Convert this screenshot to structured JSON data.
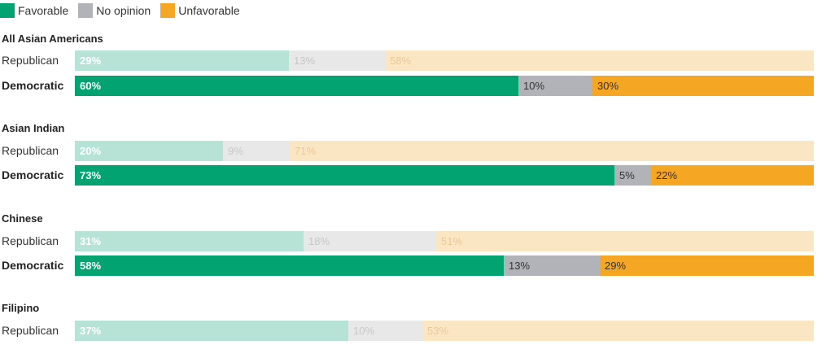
{
  "legend": [
    {
      "label": "Favorable",
      "color": "#02a370"
    },
    {
      "label": "No opinion",
      "color": "#b1b3b8"
    },
    {
      "label": "Unfavorable",
      "color": "#f5a623"
    }
  ],
  "colors": {
    "republican": {
      "favorable": "#b6e3d5",
      "no_opinion": "#e8e8e8",
      "unfavorable": "#fbe6c3",
      "favorable_text": "#ffffff",
      "no_opinion_text": "#c7c7c7",
      "unfavorable_text": "#e8c99a"
    },
    "democratic": {
      "favorable": "#02a370",
      "no_opinion": "#b1b3b8",
      "unfavorable": "#f5a623",
      "favorable_text": "#ffffff",
      "no_opinion_text": "#333333",
      "unfavorable_text": "#333333"
    }
  },
  "chart_data": {
    "type": "bar",
    "orientation": "horizontal",
    "stacked": true,
    "series_names": [
      "Favorable",
      "No opinion",
      "Unfavorable"
    ],
    "groups": [
      {
        "title": "All Asian Americans",
        "rows": [
          {
            "party": "Republican",
            "values": [
              29,
              13,
              58
            ],
            "labels": [
              "29%",
              "13%",
              "58%"
            ]
          },
          {
            "party": "Democratic",
            "values": [
              60,
              10,
              30
            ],
            "labels": [
              "60%",
              "10%",
              "30%"
            ]
          }
        ]
      },
      {
        "title": "Asian Indian",
        "rows": [
          {
            "party": "Republican",
            "values": [
              20,
              9,
              71
            ],
            "labels": [
              "20%",
              "9%",
              "71%"
            ]
          },
          {
            "party": "Democratic",
            "values": [
              73,
              5,
              22
            ],
            "labels": [
              "73%",
              "5%",
              "22%"
            ]
          }
        ]
      },
      {
        "title": "Chinese",
        "rows": [
          {
            "party": "Republican",
            "values": [
              31,
              18,
              51
            ],
            "labels": [
              "31%",
              "18%",
              "51%"
            ]
          },
          {
            "party": "Democratic",
            "values": [
              58,
              13,
              29
            ],
            "labels": [
              "58%",
              "13%",
              "29%"
            ]
          }
        ]
      },
      {
        "title": "Filipino",
        "rows": [
          {
            "party": "Republican",
            "values": [
              37,
              10,
              53
            ],
            "labels": [
              "37%",
              "10%",
              "53%"
            ]
          }
        ]
      }
    ]
  }
}
